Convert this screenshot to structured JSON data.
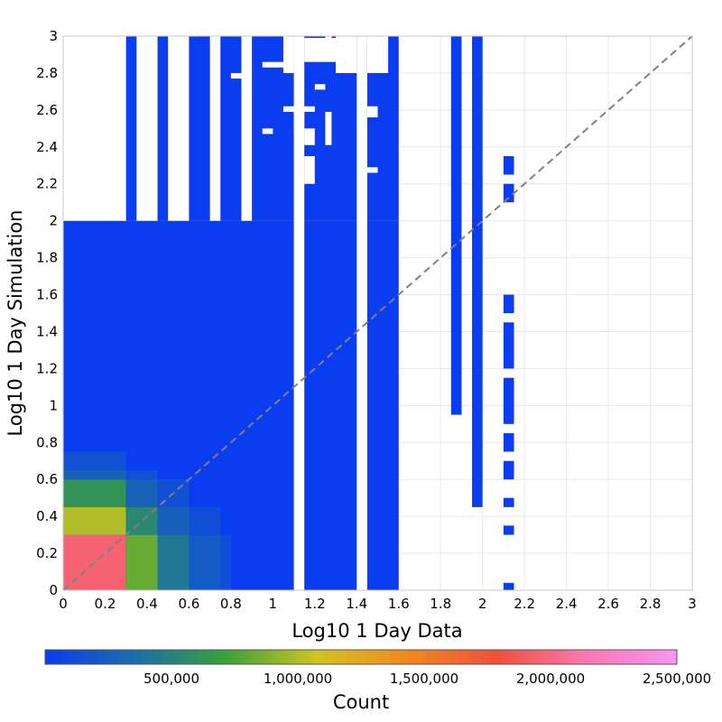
{
  "chart_data": {
    "type": "heatmap",
    "xlabel": "Log10 1 Day Data",
    "ylabel": "Log10 1 Day Simulation",
    "xlim": [
      0,
      3
    ],
    "ylim": [
      0,
      3
    ],
    "x_ticks": [
      "0",
      "0.2",
      "0.4",
      "0.6",
      "0.8",
      "1",
      "1.2",
      "1.4",
      "1.6",
      "1.8",
      "2",
      "2.2",
      "2.4",
      "2.6",
      "2.8",
      "3"
    ],
    "y_ticks": [
      "0",
      "0.2",
      "0.4",
      "0.6",
      "0.8",
      "1",
      "1.2",
      "1.4",
      "1.6",
      "1.8",
      "2",
      "2.2",
      "2.4",
      "2.6",
      "2.8",
      "3"
    ],
    "grid": true,
    "reference_line": "y = x (dashed)",
    "colorbar": {
      "label": "Count",
      "min": 0,
      "max": 2500000,
      "tick_labels": [
        "500,000",
        "1,000,000",
        "1,500,000",
        "2,000,000",
        "2,500,000"
      ],
      "tick_values": [
        500000,
        1000000,
        1500000,
        2000000,
        2500000
      ],
      "colors": [
        "#0a3cf0",
        "#1c6ea8",
        "#3aa03a",
        "#cfc423",
        "#f08a1e",
        "#f0503a",
        "#fa78b4",
        "#fa96f0"
      ]
    },
    "background_color": "#0a3cf0",
    "background_region": {
      "x": [
        0,
        1.6
      ],
      "y": [
        0,
        2.0
      ]
    },
    "colored_cells": [
      {
        "x": [
          0,
          0.3
        ],
        "y": [
          0,
          0.3
        ],
        "count": 1950000
      },
      {
        "x": [
          0,
          0.3
        ],
        "y": [
          0.3,
          0.45
        ],
        "count": 1000000
      },
      {
        "x": [
          0,
          0.3
        ],
        "y": [
          0.45,
          0.6
        ],
        "count": 620000
      },
      {
        "x": [
          0,
          0.3
        ],
        "y": [
          0.6,
          0.65
        ],
        "count": 280000
      },
      {
        "x": [
          0,
          0.3
        ],
        "y": [
          0.65,
          0.75
        ],
        "count": 150000
      },
      {
        "x": [
          0.3,
          0.45
        ],
        "y": [
          0,
          0.3
        ],
        "count": 820000
      },
      {
        "x": [
          0.3,
          0.45
        ],
        "y": [
          0.3,
          0.45
        ],
        "count": 540000
      },
      {
        "x": [
          0.3,
          0.45
        ],
        "y": [
          0.45,
          0.6
        ],
        "count": 280000
      },
      {
        "x": [
          0.3,
          0.45
        ],
        "y": [
          0.6,
          0.65
        ],
        "count": 150000
      },
      {
        "x": [
          0.45,
          0.6
        ],
        "y": [
          0,
          0.3
        ],
        "count": 420000
      },
      {
        "x": [
          0.45,
          0.6
        ],
        "y": [
          0.3,
          0.45
        ],
        "count": 260000
      },
      {
        "x": [
          0.45,
          0.6
        ],
        "y": [
          0.45,
          0.6
        ],
        "count": 140000
      },
      {
        "x": [
          0.6,
          0.75
        ],
        "y": [
          0,
          0.3
        ],
        "count": 220000
      },
      {
        "x": [
          0.6,
          0.75
        ],
        "y": [
          0.3,
          0.45
        ],
        "count": 130000
      },
      {
        "x": [
          0.75,
          0.8
        ],
        "y": [
          0,
          0.3
        ],
        "count": 120000
      }
    ],
    "white_gaps": [
      {
        "x": [
          0,
          0.3
        ],
        "y": [
          2.0,
          3.0
        ]
      },
      {
        "x": [
          0.35,
          0.45
        ],
        "y": [
          2.0,
          3.0
        ]
      },
      {
        "x": [
          0.5,
          0.6
        ],
        "y": [
          2.0,
          3.0
        ]
      },
      {
        "x": [
          0.7,
          0.75
        ],
        "y": [
          2.0,
          3.0
        ]
      },
      {
        "x": [
          0.85,
          0.9
        ],
        "y": [
          2.0,
          3.0
        ]
      },
      {
        "x": [
          0.8,
          0.85
        ],
        "y": [
          2.77,
          2.8
        ]
      },
      {
        "x": [
          1.05,
          1.1
        ],
        "y": [
          2.8,
          3.0
        ]
      },
      {
        "x": [
          0.95,
          1.05
        ],
        "y": [
          2.83,
          2.86
        ]
      },
      {
        "x": [
          1.1,
          1.15
        ],
        "y": [
          0,
          3.0
        ]
      },
      {
        "x": [
          1.15,
          1.3
        ],
        "y": [
          2.86,
          2.99
        ]
      },
      {
        "x": [
          1.18,
          1.3
        ],
        "y": [
          2.92,
          2.95
        ]
      },
      {
        "x": [
          1.25,
          1.28
        ],
        "y": [
          2.97,
          3.0
        ]
      },
      {
        "x": [
          1.2,
          1.25
        ],
        "y": [
          2.71,
          2.74
        ]
      },
      {
        "x": [
          1.05,
          1.2
        ],
        "y": [
          2.59,
          2.62
        ]
      },
      {
        "x": [
          1.1,
          1.15
        ],
        "y": [
          2.47,
          2.62
        ]
      },
      {
        "x": [
          1.25,
          1.28
        ],
        "y": [
          2.41,
          2.59
        ]
      },
      {
        "x": [
          1.15,
          1.2
        ],
        "y": [
          2.41,
          2.5
        ]
      },
      {
        "x": [
          1.15,
          1.2
        ],
        "y": [
          2.2,
          2.35
        ]
      },
      {
        "x": [
          1.3,
          1.4
        ],
        "y": [
          2.8,
          3.0
        ]
      },
      {
        "x": [
          1.4,
          1.45
        ],
        "y": [
          0,
          3.0
        ]
      },
      {
        "x": [
          1.45,
          1.55
        ],
        "y": [
          2.8,
          3.0
        ]
      },
      {
        "x": [
          1.45,
          1.5
        ],
        "y": [
          2.26,
          2.29
        ]
      },
      {
        "x": [
          1.45,
          1.5
        ],
        "y": [
          2.56,
          2.62
        ]
      },
      {
        "x": [
          0.95,
          1.0
        ],
        "y": [
          2.47,
          2.5
        ]
      }
    ],
    "extra_bars": [
      {
        "x": [
          1.85,
          1.9
        ],
        "y": [
          0.95,
          3.0
        ]
      },
      {
        "x": [
          1.95,
          2.0
        ],
        "y": [
          0.45,
          3.0
        ]
      },
      {
        "x": [
          2.1,
          2.15
        ],
        "y": [
          0,
          0.04
        ]
      },
      {
        "x": [
          2.1,
          2.15
        ],
        "y": [
          0.3,
          0.35
        ]
      },
      {
        "x": [
          2.1,
          2.15
        ],
        "y": [
          0.45,
          0.5
        ]
      },
      {
        "x": [
          2.1,
          2.15
        ],
        "y": [
          0.6,
          0.7
        ]
      },
      {
        "x": [
          2.1,
          2.15
        ],
        "y": [
          0.75,
          0.85
        ]
      },
      {
        "x": [
          2.1,
          2.15
        ],
        "y": [
          0.9,
          1.15
        ]
      },
      {
        "x": [
          2.1,
          2.15
        ],
        "y": [
          1.2,
          1.45
        ]
      },
      {
        "x": [
          2.1,
          2.15
        ],
        "y": [
          1.5,
          1.6
        ]
      },
      {
        "x": [
          2.1,
          2.15
        ],
        "y": [
          2.1,
          2.2
        ]
      },
      {
        "x": [
          2.1,
          2.15
        ],
        "y": [
          2.25,
          2.35
        ]
      }
    ]
  }
}
